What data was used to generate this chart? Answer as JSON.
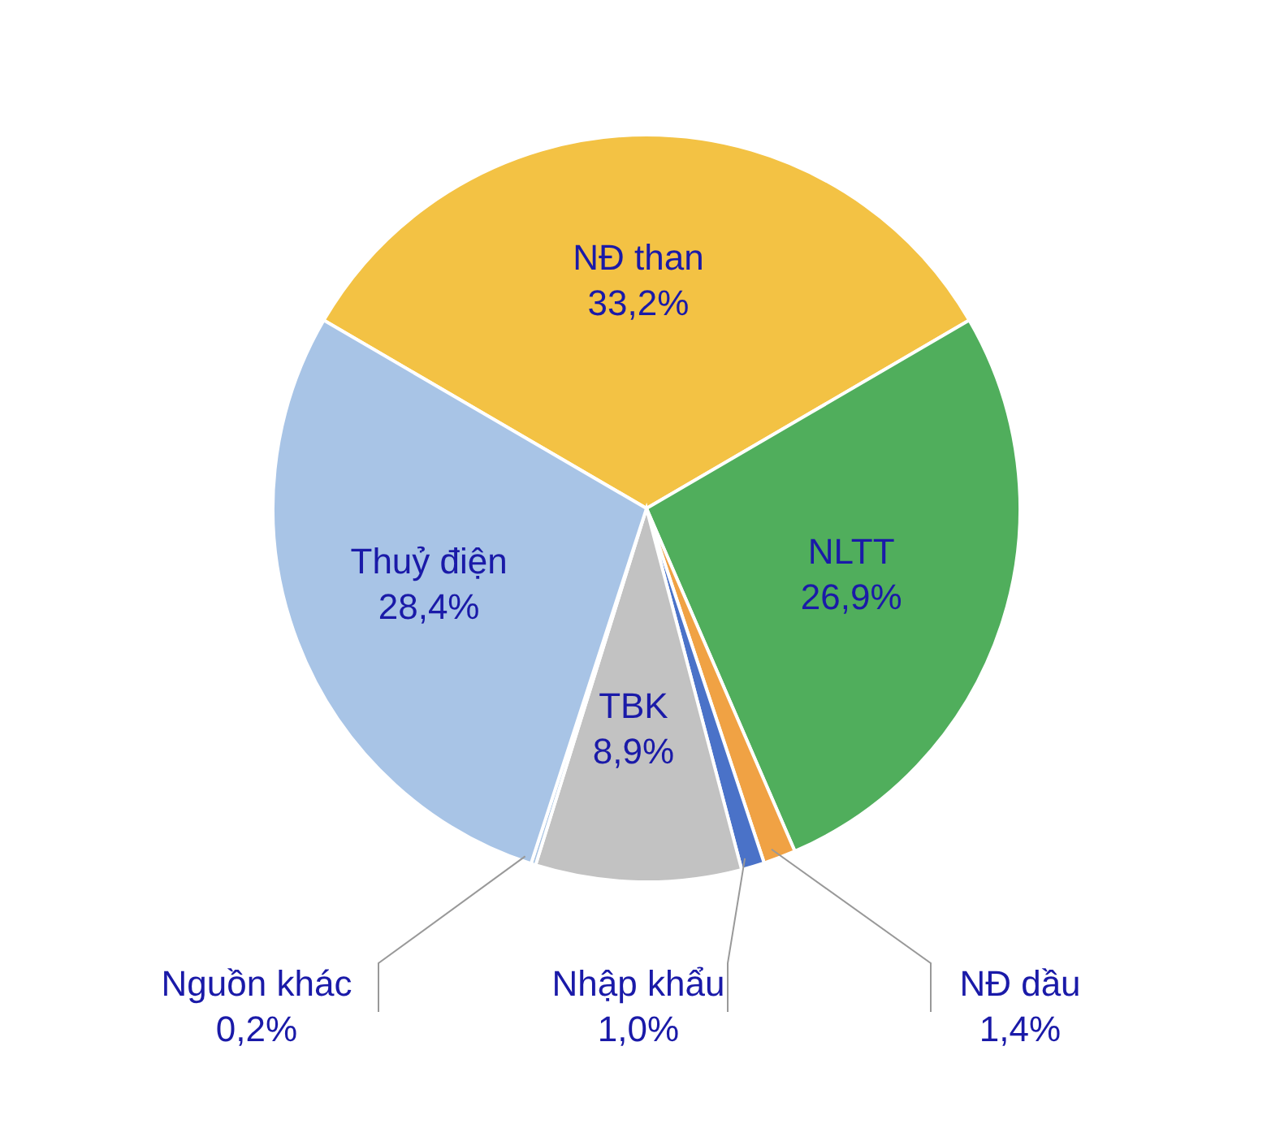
{
  "chart_data": {
    "type": "pie",
    "categories": [
      "NĐ than",
      "NLTT",
      "NĐ dầu",
      "Nhập khẩu",
      "TBK",
      "Nguồn khác",
      "Thuỷ điện"
    ],
    "values": [
      33.2,
      26.9,
      1.4,
      1.0,
      8.9,
      0.2,
      28.4
    ],
    "value_labels": [
      "33,2%",
      "26,9%",
      "1,4%",
      "1,0%",
      "8,9%",
      "0,2%",
      "28,4%"
    ],
    "colors": [
      "#f3c244",
      "#50ae5c",
      "#f0a244",
      "#4a72c8",
      "#c2c2c2",
      "#a6c2e2",
      "#a8c4e6"
    ]
  }
}
